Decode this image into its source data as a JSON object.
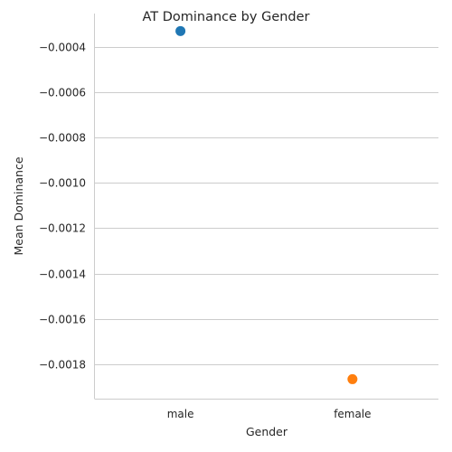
{
  "chart_data": {
    "type": "scatter",
    "title": "AT Dominance by Gender",
    "xlabel": "Gender",
    "ylabel": "Mean Dominance",
    "categories": [
      "male",
      "female"
    ],
    "values": [
      -0.000331,
      -0.001866
    ],
    "colors": [
      "#1f77b4",
      "#ff7f0e"
    ],
    "yticks": [
      -0.0004,
      -0.0006,
      -0.0008,
      -0.001,
      -0.0012,
      -0.0014,
      -0.0016,
      -0.0018
    ],
    "ytick_labels": [
      "−0.0004",
      "−0.0006",
      "−0.0008",
      "−0.0010",
      "−0.0012",
      "−0.0014",
      "−0.0016",
      "−0.0018"
    ],
    "ylim": [
      -0.001952,
      -0.000254
    ],
    "grid": "horizontal"
  }
}
